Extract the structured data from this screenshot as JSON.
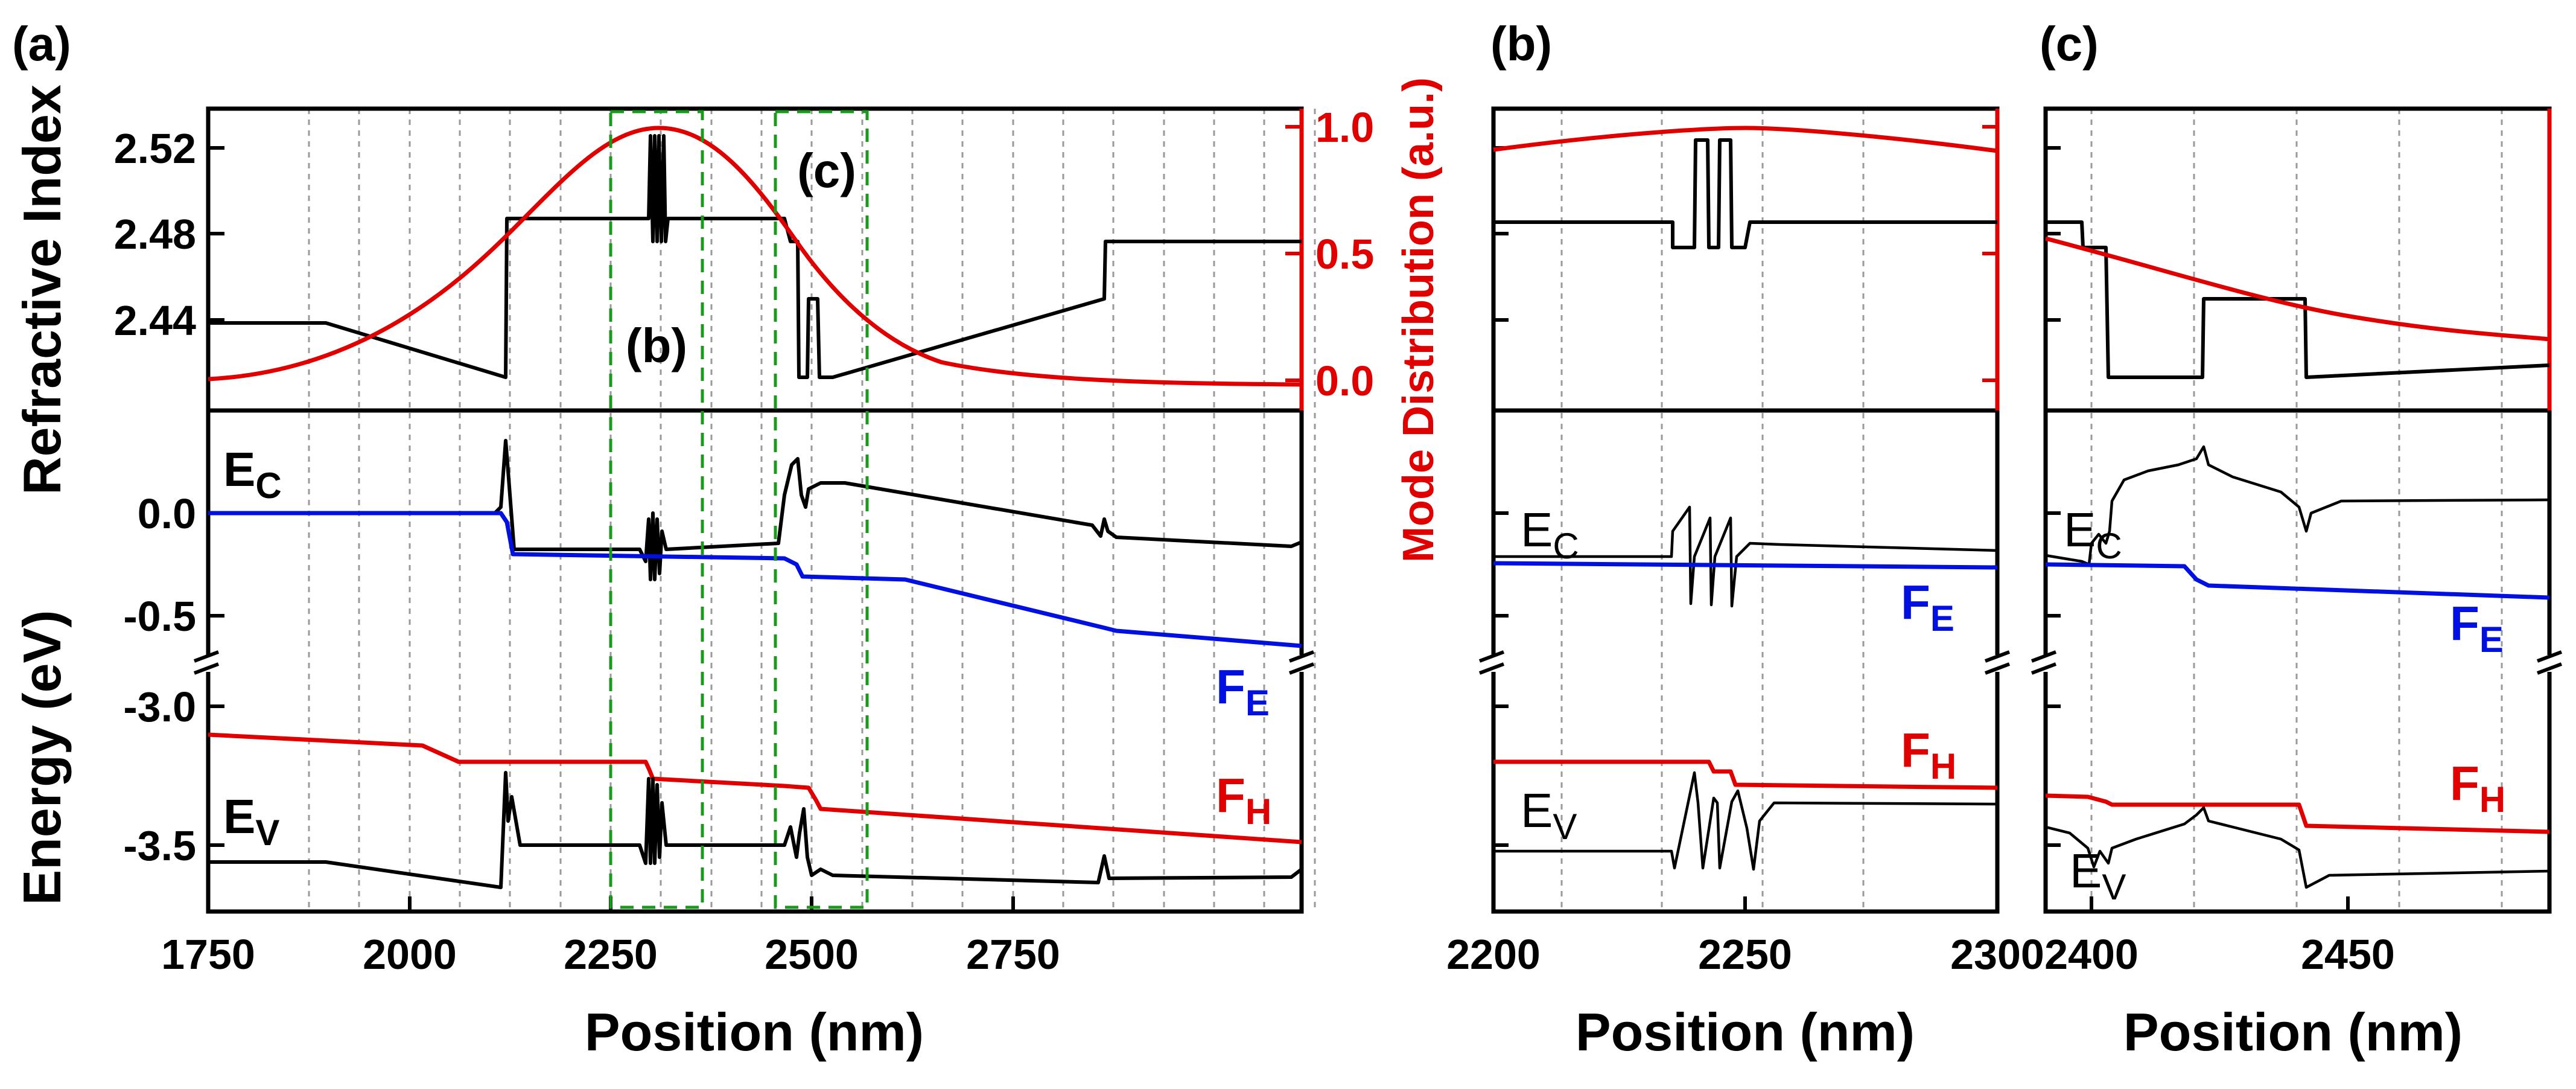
{
  "panels": {
    "a": "(a)",
    "b": "(b)",
    "c": "(c)",
    "inset_b": "(b)",
    "inset_c": "(c)"
  },
  "axes": {
    "x_label": "Position (nm)",
    "y_top_label": "Refractive Index",
    "y_bottom_label": "Energy (eV)",
    "y_right_label": "Mode Distribution (a.u.)",
    "panel_a_x_ticks": [
      "1750",
      "2000",
      "2250",
      "2500",
      "2750"
    ],
    "panel_b_x_ticks": [
      "2200",
      "2250",
      "2300"
    ],
    "panel_c_x_ticks": [
      "2400",
      "2450"
    ],
    "refractive_index_ticks": [
      "2.52",
      "2.48",
      "2.44"
    ],
    "mode_ticks": [
      "1.0",
      "0.5",
      "0.0"
    ],
    "energy_upper_ticks": [
      "0.0",
      "-0.5"
    ],
    "energy_lower_ticks": [
      "-3.0",
      "-3.5"
    ]
  },
  "band_labels": {
    "ec_main": "E",
    "ec_sub": "C",
    "ev_main": "E",
    "ev_sub": "V",
    "fe_main": "F",
    "fe_sub": "E",
    "fh_main": "F",
    "fh_sub": "H"
  },
  "colors": {
    "refractive_index": "#000000",
    "mode": "#e00000",
    "conduction_band": "#000000",
    "electron_quasi_fermi": "#0010e0",
    "hole_quasi_fermi": "#e00000",
    "valence_band": "#000000",
    "zoom_boxes": "#1a9a1a"
  },
  "chart_data": [
    {
      "panel": "(a)",
      "type": "line",
      "xlabel": "Position (nm)",
      "xlim": [
        1750,
        2950
      ],
      "subplots": [
        {
          "ylabel": "Refractive Index",
          "ylim": [
            2.407,
            2.545
          ],
          "y2label": "Mode Distribution (a.u.)",
          "y2lim": [
            -0.09,
            1.17
          ],
          "series": [
            {
              "axis": "left",
              "x": [
                1750,
                1890,
                2085,
                2088,
                2235,
                2238,
                2246,
                2250,
                2258,
                2262,
                2390,
                2398,
                2410,
                2412,
                2420,
                2422,
                2433,
                2435,
                2443,
                2445,
                2740,
                2742,
                2950
              ],
              "y": [
                2.44,
                2.44,
                2.417,
                2.488,
                2.488,
                2.525,
                2.475,
                2.525,
                2.475,
                2.488,
                2.488,
                2.477,
                2.477,
                2.417,
                2.417,
                2.453,
                2.453,
                2.417,
                2.417,
                2.417,
                2.453,
                2.476,
                2.476
              ]
            },
            {
              "axis": "right",
              "type": "gaussian",
              "x_peak": 2250,
              "peak": 1.0,
              "sigma": 110,
              "baseline": 0.0,
              "x_range": [
                1750,
                2950
              ]
            }
          ]
        },
        {
          "ylabel": "Energy (eV)",
          "broken_axis": true,
          "ylim_upper": [
            -0.7,
            0.35
          ],
          "ylim_lower": [
            -3.65,
            -2.85
          ],
          "series": [
            {
              "label": "E_C",
              "x": [
                1750,
                2080,
                2088,
                2092,
                2105,
                2230,
                2240,
                2255,
                2390,
                2405,
                2415,
                2425,
                2435,
                2440,
                2460,
                2730,
                2740,
                2750,
                2945,
                2950
              ],
              "y": [
                0.0,
                0.0,
                0.3,
                -0.05,
                -0.23,
                -0.23,
                -0.27,
                -0.22,
                -0.18,
                0.05,
                0.27,
                0.14,
                0.05,
                0.08,
                0.07,
                -0.13,
                -0.08,
                -0.16,
                -0.21,
                -0.17
              ]
            },
            {
              "label": "F_E",
              "x": [
                1750,
                2090,
                2110,
                2390,
                2420,
                2430,
                2740,
                2750,
                2950
              ],
              "y": [
                0.0,
                0.0,
                -0.25,
                -0.27,
                -0.31,
                -0.37,
                -0.55,
                -0.6,
                -0.63
              ]
            },
            {
              "label": "F_H",
              "x": [
                1750,
                1960,
                2040,
                2240,
                2260,
                2400,
                2440,
                2450,
                2950
              ],
              "y": [
                -3.15,
                -3.18,
                -3.28,
                -3.28,
                -3.34,
                -3.37,
                -3.38,
                -3.47,
                -3.52
              ]
            },
            {
              "label": "E_V",
              "x": [
                1750,
                1890,
                2080,
                2088,
                2100,
                2240,
                2255,
                2400,
                2420,
                2430,
                2440,
                2460,
                2740,
                2745,
                2760,
                2950
              ],
              "y": [
                -3.57,
                -3.57,
                -3.62,
                -3.35,
                -3.52,
                -3.52,
                -3.48,
                -3.52,
                -3.39,
                -3.6,
                -3.65,
                -3.6,
                -3.62,
                -3.55,
                -3.61,
                -3.6
              ]
            }
          ]
        }
      ],
      "annotations": [
        {
          "text": "(b)",
          "zoom_x_range": [
            2200,
            2300
          ]
        },
        {
          "text": "(c)",
          "zoom_x_range": [
            2380,
            2480
          ]
        }
      ]
    },
    {
      "panel": "(b)",
      "type": "line",
      "xlabel": "Position (nm)",
      "xlim": [
        2200,
        2300
      ],
      "series_labels": [
        "E_C",
        "F_E",
        "F_H",
        "E_V"
      ]
    },
    {
      "panel": "(c)",
      "type": "line",
      "xlabel": "Position (nm)",
      "xlim": [
        2380,
        2482
      ],
      "series_labels": [
        "E_C",
        "F_E",
        "F_H",
        "E_V"
      ]
    }
  ]
}
